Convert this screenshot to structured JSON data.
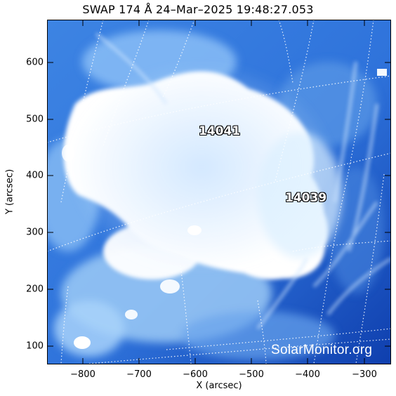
{
  "title": "SWAP 174 Å 24–Mar–2025 19:48:27.053",
  "axes": {
    "xlabel": "X (arcsec)",
    "ylabel": "Y (arcsec)",
    "x_ticks": [
      "−800",
      "−700",
      "−600",
      "−500",
      "−400",
      "−300"
    ],
    "y_ticks": [
      "600",
      "500",
      "400",
      "300",
      "200",
      "100"
    ],
    "x_range_arcsec": [
      -860,
      -255
    ],
    "y_range_arcsec": [
      70,
      670
    ]
  },
  "active_regions": [
    {
      "label": "14041",
      "x_arcsec": -550,
      "y_arcsec": 476
    },
    {
      "label": "14039",
      "x_arcsec": -405,
      "y_arcsec": 356
    }
  ],
  "watermark": "SolarMonitor.org",
  "colors": {
    "colormap_dark": "#0b3aa8",
    "colormap_mid": "#4b8ee6",
    "colormap_light": "#bfe0ff",
    "saturated": "#ffffff",
    "grid": "#ffffff"
  }
}
